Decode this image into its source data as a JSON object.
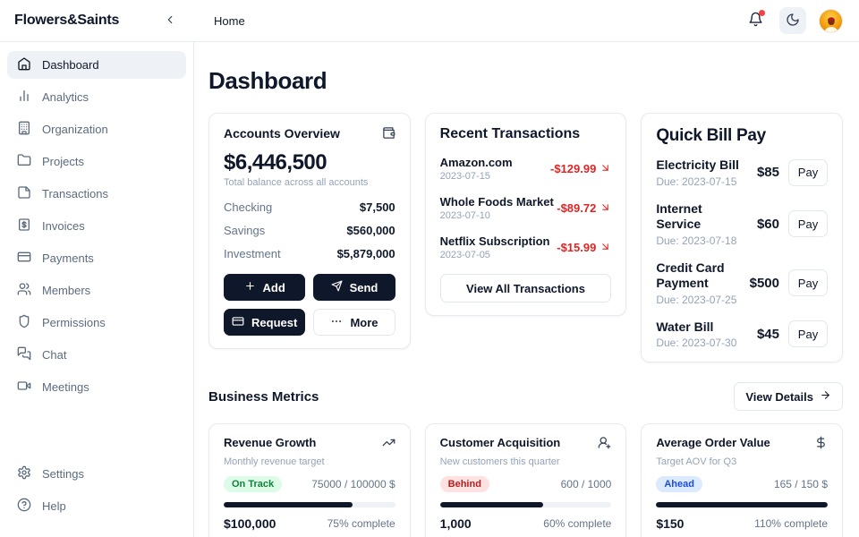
{
  "header": {
    "brand": "Flowers&Saints",
    "breadcrumb": "Home"
  },
  "sidebar": {
    "items": [
      {
        "label": "Dashboard",
        "icon": "home-icon",
        "active": true
      },
      {
        "label": "Analytics",
        "icon": "bar-chart-icon"
      },
      {
        "label": "Organization",
        "icon": "building-icon"
      },
      {
        "label": "Projects",
        "icon": "folder-icon"
      },
      {
        "label": "Transactions",
        "icon": "note-icon"
      },
      {
        "label": "Invoices",
        "icon": "receipt-icon"
      },
      {
        "label": "Payments",
        "icon": "credit-card-icon"
      },
      {
        "label": "Members",
        "icon": "users-icon"
      },
      {
        "label": "Permissions",
        "icon": "shield-icon"
      },
      {
        "label": "Chat",
        "icon": "chat-icon"
      },
      {
        "label": "Meetings",
        "icon": "video-icon"
      }
    ],
    "footer_items": [
      {
        "label": "Settings",
        "icon": "gear-icon"
      },
      {
        "label": "Help",
        "icon": "help-icon"
      }
    ]
  },
  "page_title": "Dashboard",
  "accounts": {
    "title": "Accounts Overview",
    "balance": "$6,446,500",
    "caption": "Total balance across all accounts",
    "rows": [
      {
        "label": "Checking",
        "value": "$7,500"
      },
      {
        "label": "Savings",
        "value": "$560,000"
      },
      {
        "label": "Investment",
        "value": "$5,879,000"
      }
    ],
    "actions": {
      "add": "Add",
      "send": "Send",
      "request": "Request",
      "more": "More"
    }
  },
  "transactions": {
    "title": "Recent Transactions",
    "items": [
      {
        "name": "Amazon.com",
        "date": "2023-07-15",
        "amount": "-$129.99"
      },
      {
        "name": "Whole Foods Market",
        "date": "2023-07-10",
        "amount": "-$89.72"
      },
      {
        "name": "Netflix Subscription",
        "date": "2023-07-05",
        "amount": "-$15.99"
      }
    ],
    "view_all": "View All Transactions"
  },
  "bills": {
    "title": "Quick Bill Pay",
    "pay_label": "Pay",
    "items": [
      {
        "name": "Electricity Bill",
        "due": "Due: 2023-07-15",
        "amount": "$85"
      },
      {
        "name": "Internet Service",
        "due": "Due: 2023-07-18",
        "amount": "$60"
      },
      {
        "name": "Credit Card Payment",
        "due": "Due: 2023-07-25",
        "amount": "$500"
      },
      {
        "name": "Water Bill",
        "due": "Due: 2023-07-30",
        "amount": "$45"
      }
    ]
  },
  "metrics": {
    "heading": "Business Metrics",
    "view_details": "View Details",
    "cards": [
      {
        "title": "Revenue Growth",
        "subtitle": "Monthly revenue target",
        "badge": "On Track",
        "badge_type": "green",
        "fraction": "75000 / 100000 $",
        "progress_pct": 75,
        "value": "$100,000",
        "complete": "75% complete",
        "icon": "trending-up-icon"
      },
      {
        "title": "Customer Acquisition",
        "subtitle": "New customers this quarter",
        "badge": "Behind",
        "badge_type": "red",
        "fraction": "600 / 1000",
        "progress_pct": 60,
        "value": "1,000",
        "complete": "60% complete",
        "icon": "users-icon"
      },
      {
        "title": "Average Order Value",
        "subtitle": "Target AOV for Q3",
        "badge": "Ahead",
        "badge_type": "blue",
        "fraction": "165 / 150 $",
        "progress_pct": 100,
        "value": "$150",
        "complete": "110% complete",
        "icon": "dollar-icon"
      }
    ]
  },
  "colors": {
    "accent_dark": "#0f172a",
    "negative_red": "#dc2626",
    "badge_green_bg": "#dcfce7",
    "badge_red_bg": "#fee2e2",
    "badge_blue_bg": "#dbeafe",
    "notification_dot": "#ef4444"
  }
}
